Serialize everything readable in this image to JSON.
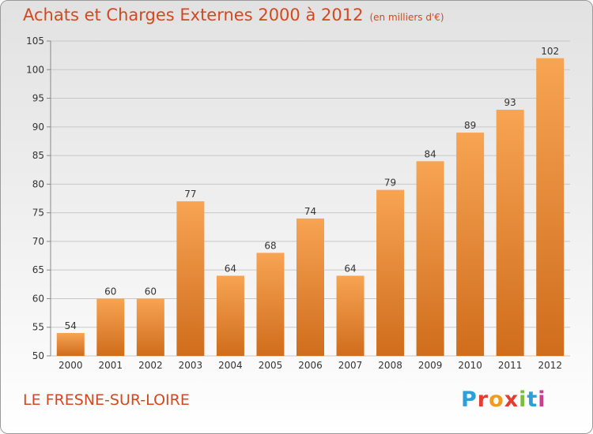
{
  "header": {
    "title": "Achats et Charges Externes 2000 à 2012",
    "unit": "(en milliers d'€)"
  },
  "footer": {
    "commune": "LE FRESNE-SUR-LOIRE",
    "logo_text": "Proxiti",
    "logo_colors": [
      "#2a9fd8",
      "#e43d2f",
      "#f29a1b",
      "#e43d2f",
      "#7dbd3b",
      "#2a9fd8",
      "#c83f8f"
    ]
  },
  "colors": {
    "title": "#d4481f",
    "bar_light": "#f7a453",
    "bar_dark": "#cf6d1c",
    "grid": "#c7c7c7",
    "axis_text": "#333333"
  },
  "chart_data": {
    "type": "bar",
    "categories": [
      "2000",
      "2001",
      "2002",
      "2003",
      "2004",
      "2005",
      "2006",
      "2007",
      "2008",
      "2009",
      "2010",
      "2011",
      "2012"
    ],
    "values": [
      54,
      60,
      60,
      77,
      64,
      68,
      74,
      64,
      79,
      84,
      89,
      93,
      102
    ],
    "data_labels": [
      "54",
      "60",
      "60",
      "77",
      "64",
      "68",
      "74",
      "64",
      "79",
      "84",
      "89",
      "93",
      "102"
    ],
    "yticks": [
      50,
      55,
      60,
      65,
      70,
      75,
      80,
      85,
      90,
      95,
      100,
      105
    ],
    "ylim": [
      50,
      105
    ],
    "grid": true,
    "legend": "none"
  }
}
